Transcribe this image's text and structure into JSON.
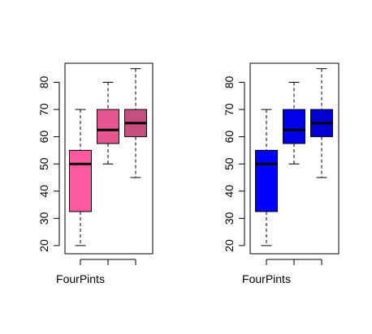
{
  "chart_data": [
    {
      "type": "boxplot",
      "title": "",
      "xlabel": "",
      "ylabel": "",
      "ylim": [
        17,
        87
      ],
      "yticks": [
        20,
        30,
        40,
        50,
        60,
        70,
        80
      ],
      "category_labels": [
        "FourPints",
        "",
        ""
      ],
      "grid": false,
      "legend": "none",
      "boxes": [
        {
          "min": 20,
          "q1": 32.5,
          "median": 50,
          "q3": 55,
          "max": 70,
          "color": "#ff5aa0"
        },
        {
          "min": 50,
          "q1": 57.5,
          "median": 62.5,
          "q3": 70,
          "max": 80,
          "color": "#e75593"
        },
        {
          "min": 45,
          "q1": 60,
          "median": 65,
          "q3": 70,
          "max": 85,
          "color": "#c54f7f"
        }
      ]
    },
    {
      "type": "boxplot",
      "title": "",
      "xlabel": "",
      "ylabel": "",
      "ylim": [
        17,
        87
      ],
      "yticks": [
        20,
        30,
        40,
        50,
        60,
        70,
        80
      ],
      "category_labels": [
        "FourPints",
        "",
        ""
      ],
      "grid": false,
      "legend": "none",
      "boxes": [
        {
          "min": 20,
          "q1": 32.5,
          "median": 50,
          "q3": 55,
          "max": 70,
          "color": "#0000ff"
        },
        {
          "min": 50,
          "q1": 57.5,
          "median": 62.5,
          "q3": 70,
          "max": 80,
          "color": "#0000e8"
        },
        {
          "min": 45,
          "q1": 60,
          "median": 65,
          "q3": 70,
          "max": 85,
          "color": "#0000d0"
        }
      ]
    }
  ]
}
